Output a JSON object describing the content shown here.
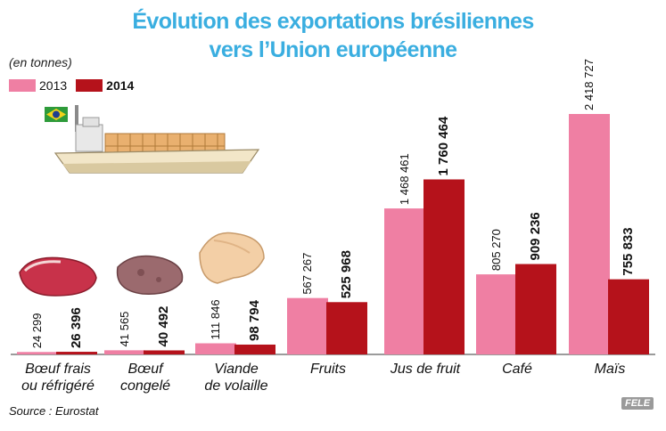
{
  "title": {
    "line1": "Évolution des exportations brésiliennes",
    "line2": "vers l’Union européenne"
  },
  "unit_label": "(en tonnes)",
  "source": "Source : Eurostat",
  "credit": "FELE",
  "colors": {
    "series_2013": "#ef7fa3",
    "series_2014": "#b5121b",
    "title": "#3aaee0",
    "baseline": "#7a7a7a"
  },
  "chart_data": {
    "type": "bar",
    "title": "Évolution des exportations brésiliennes vers l’Union européenne",
    "unit": "(en tonnes)",
    "categories": [
      {
        "lines": [
          "Bœuf frais",
          "ou réfrigéré"
        ],
        "icon": "fresh-beef-icon"
      },
      {
        "lines": [
          "Bœuf",
          "congelé"
        ],
        "icon": "frozen-beef-icon"
      },
      {
        "lines": [
          "Viande",
          "de volaille"
        ],
        "icon": "poultry-icon"
      },
      {
        "lines": [
          "Fruits"
        ],
        "icon": "fruits-icon"
      },
      {
        "lines": [
          "Jus de fruit"
        ],
        "icon": "juice-bottle-icon"
      },
      {
        "lines": [
          "Café"
        ],
        "icon": "coffee-sack-icon"
      },
      {
        "lines": [
          "Maïs"
        ],
        "icon": "corn-icon"
      }
    ],
    "series": [
      {
        "name": "2013",
        "values": [
          24299,
          41565,
          111846,
          567267,
          1468461,
          805270,
          2418727
        ],
        "labels": [
          "24 299",
          "41 565",
          "111 846",
          "567 267",
          "1 468 461",
          "805 270",
          "2 418 727"
        ]
      },
      {
        "name": "2014",
        "values": [
          26396,
          40492,
          98794,
          525968,
          1760464,
          909236,
          755833
        ],
        "labels": [
          "26 396",
          "40 492",
          "98 794",
          "525 968",
          "1 760 464",
          "909 236",
          "755 833"
        ]
      }
    ],
    "legend_position": "top-left",
    "grid": false
  }
}
